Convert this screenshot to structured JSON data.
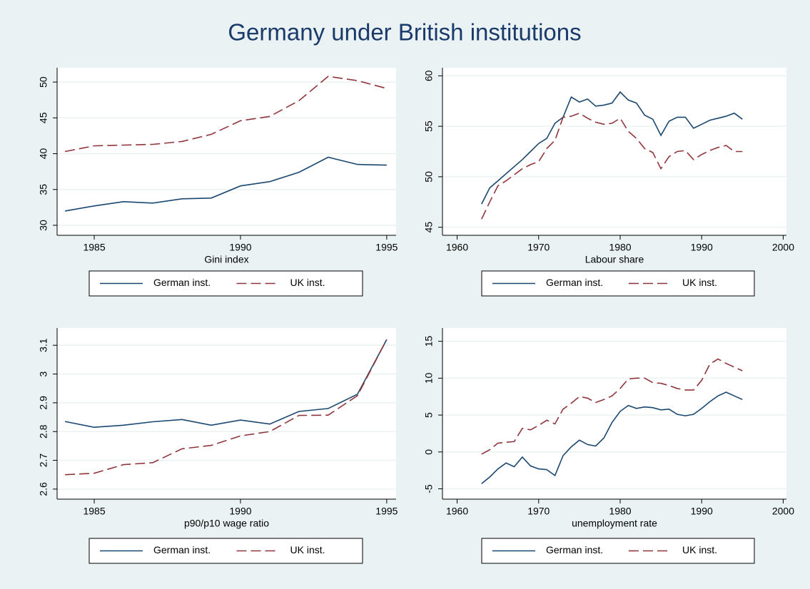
{
  "title": "Germany under British institutions",
  "chart_data": [
    {
      "type": "line",
      "x_label": "Gini index",
      "x": [
        1984,
        1985,
        1986,
        1987,
        1988,
        1989,
        1990,
        1991,
        1992,
        1993,
        1994,
        1995
      ],
      "series": [
        {
          "name": "German inst.",
          "color": "#1a476f",
          "line_style": "solid",
          "values": [
            32.0,
            32.7,
            33.3,
            33.1,
            33.7,
            33.8,
            35.5,
            36.1,
            37.4,
            39.5,
            38.5,
            38.4
          ]
        },
        {
          "name": "UK inst.",
          "color": "#90353b",
          "line_style": "dashed",
          "values": [
            40.3,
            41.1,
            41.2,
            41.3,
            41.7,
            42.7,
            44.6,
            45.2,
            47.4,
            50.8,
            50.2,
            49.1
          ]
        }
      ],
      "xlim": [
        1983.73,
        1995.32
      ],
      "xticks": [
        1985,
        1990,
        1995
      ],
      "ylim": [
        28.6,
        52.0
      ],
      "yticks": [
        30,
        35,
        40,
        45,
        50
      ],
      "grid": true,
      "legend": "bottom"
    },
    {
      "type": "line",
      "x_label": "Labour share",
      "x": [
        1963,
        1964,
        1965,
        1966,
        1967,
        1968,
        1969,
        1970,
        1971,
        1972,
        1973,
        1974,
        1975,
        1976,
        1977,
        1978,
        1979,
        1980,
        1981,
        1982,
        1983,
        1984,
        1985,
        1986,
        1987,
        1988,
        1989,
        1990,
        1991,
        1992,
        1993,
        1994,
        1995
      ],
      "series": [
        {
          "name": "German inst.",
          "color": "#1a476f",
          "line_style": "solid",
          "values": [
            47.3,
            48.9,
            49.6,
            50.3,
            51.0,
            51.7,
            52.5,
            53.3,
            53.8,
            55.3,
            55.9,
            57.9,
            57.4,
            57.7,
            57.0,
            57.1,
            57.3,
            58.4,
            57.6,
            57.3,
            56.1,
            55.7,
            54.1,
            55.5,
            55.9,
            55.9,
            54.8,
            55.2,
            55.6,
            55.8,
            56.0,
            56.3,
            55.7
          ]
        },
        {
          "name": "UK inst.",
          "color": "#90353b",
          "line_style": "dashed",
          "values": [
            45.8,
            47.5,
            49.1,
            49.6,
            50.2,
            50.8,
            51.2,
            51.5,
            52.8,
            53.6,
            55.9,
            56.0,
            56.3,
            55.8,
            55.4,
            55.2,
            55.3,
            55.8,
            54.5,
            53.8,
            52.8,
            52.4,
            50.8,
            52.0,
            52.5,
            52.6,
            51.7,
            52.2,
            52.6,
            52.9,
            53.1,
            52.5,
            52.5
          ]
        }
      ],
      "xlim": [
        1958.2,
        2000.4
      ],
      "xticks": [
        1960,
        1970,
        1980,
        1990,
        2000
      ],
      "ylim": [
        44.2,
        60.8
      ],
      "yticks": [
        45,
        50,
        55,
        60
      ],
      "grid": true,
      "legend": "bottom"
    },
    {
      "type": "line",
      "x_label": "p90/p10 wage ratio",
      "x": [
        1984,
        1985,
        1986,
        1987,
        1988,
        1989,
        1990,
        1991,
        1992,
        1993,
        1994,
        1995
      ],
      "series": [
        {
          "name": "German inst.",
          "color": "#1a476f",
          "line_style": "solid",
          "values": [
            2.835,
            2.815,
            2.822,
            2.834,
            2.842,
            2.822,
            2.84,
            2.826,
            2.87,
            2.88,
            2.93,
            3.12
          ]
        },
        {
          "name": "UK inst.",
          "color": "#90353b",
          "line_style": "dashed",
          "values": [
            2.65,
            2.655,
            2.685,
            2.692,
            2.74,
            2.752,
            2.785,
            2.8,
            2.856,
            2.857,
            2.925,
            3.12
          ]
        }
      ],
      "xlim": [
        1983.73,
        1995.32
      ],
      "xticks": [
        1985,
        1990,
        1995
      ],
      "ylim": [
        2.565,
        3.16
      ],
      "yticks": [
        2.6,
        2.7,
        2.8,
        2.9,
        3,
        3.1
      ],
      "grid": true,
      "legend": "bottom"
    },
    {
      "type": "line",
      "x_label": "unemployment rate",
      "x": [
        1963,
        1964,
        1965,
        1966,
        1967,
        1968,
        1969,
        1970,
        1971,
        1972,
        1973,
        1974,
        1975,
        1976,
        1977,
        1978,
        1979,
        1980,
        1981,
        1982,
        1983,
        1984,
        1985,
        1986,
        1987,
        1988,
        1989,
        1990,
        1991,
        1992,
        1993,
        1994,
        1995
      ],
      "series": [
        {
          "name": "German inst.",
          "color": "#1a476f",
          "line_style": "solid",
          "values": [
            -4.3,
            -3.4,
            -2.3,
            -1.5,
            -2.0,
            -0.7,
            -1.9,
            -2.3,
            -2.4,
            -3.2,
            -0.5,
            0.7,
            1.6,
            1.0,
            0.8,
            1.9,
            4.0,
            5.5,
            6.3,
            5.9,
            6.1,
            6.0,
            5.7,
            5.8,
            5.1,
            4.9,
            5.1,
            5.9,
            6.8,
            7.6,
            8.1,
            7.6,
            7.1
          ]
        },
        {
          "name": "UK inst.",
          "color": "#90353b",
          "line_style": "dashed",
          "values": [
            -0.3,
            0.3,
            1.2,
            1.3,
            1.4,
            3.2,
            3.0,
            3.6,
            4.3,
            3.8,
            5.8,
            6.6,
            7.5,
            7.3,
            6.7,
            7.1,
            7.6,
            8.6,
            9.9,
            10.0,
            10.0,
            9.4,
            9.3,
            9.0,
            8.6,
            8.4,
            8.4,
            9.7,
            11.9,
            12.6,
            12.0,
            11.5,
            11.0
          ]
        }
      ],
      "xlim": [
        1958.2,
        2000.4
      ],
      "xticks": [
        1960,
        1970,
        1980,
        1990,
        2000
      ],
      "ylim": [
        -6.4,
        16.8
      ],
      "yticks": [
        -5,
        0,
        5,
        10,
        15
      ],
      "grid": true,
      "legend": "bottom"
    }
  ]
}
